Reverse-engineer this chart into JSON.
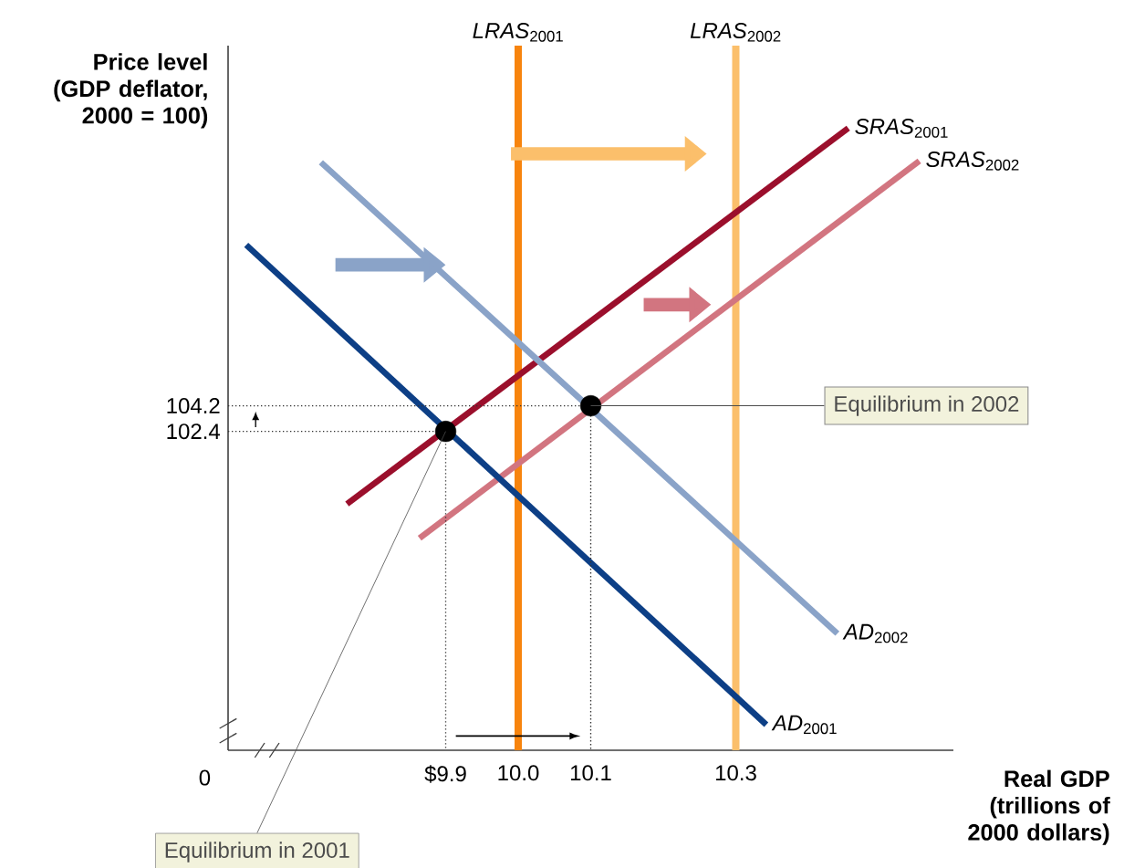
{
  "chart_data": {
    "type": "line",
    "ylabel": "Price level (GDP deflator, 2000 = 100)",
    "xlabel": "Real GDP (trillions of 2000 dollars)",
    "xlim": [
      9.6,
      10.6
    ],
    "ylim": [
      80,
      129.5
    ],
    "xticks": [
      {
        "value": 9.9,
        "label": "$9.9"
      },
      {
        "value": 10.0,
        "label": "10.0"
      },
      {
        "value": 10.1,
        "label": "10.1"
      },
      {
        "value": 10.3,
        "label": "10.3"
      }
    ],
    "yticks": [
      102.4,
      104.2
    ],
    "legend": false,
    "series": [
      {
        "name": "*LRAS*$_{2001}$",
        "color": "#f7840e",
        "x": [
          10.0,
          10.0
        ],
        "values": [
          80,
          129.5
        ]
      },
      {
        "name": "*LRAS*$_{2002}$",
        "color": "#fbbf6b",
        "x": [
          10.3,
          10.3
        ],
        "values": [
          80,
          129.5
        ]
      },
      {
        "name": "*SRAS*$_{2001}$",
        "color": "#9b0f2c",
        "x": [
          9.764,
          10.455
        ],
        "values": [
          97.3,
          123.7
        ]
      },
      {
        "name": "*SRAS*$_{2002}$",
        "color": "#d27580",
        "x": [
          9.864,
          10.553
        ],
        "values": [
          94.9,
          121.4
        ]
      },
      {
        "name": "*AD*$_{2002}$",
        "color": "#8aa3c8",
        "x": [
          9.728,
          10.44
        ],
        "values": [
          121.3,
          88.2
        ]
      },
      {
        "name": "*AD*$_{2001}$",
        "color": "#0d3f86",
        "x": [
          9.625,
          10.342
        ],
        "values": [
          115.5,
          81.8
        ]
      },
      {
        "line_style": "dotted",
        "color": "#333333",
        "x": [
          9.6,
          9.9,
          9.9
        ],
        "values": [
          102.4,
          102.4,
          80
        ]
      },
      {
        "line_style": "dotted",
        "color": "#333333",
        "x": [
          9.6,
          10.1,
          10.1
        ],
        "values": [
          104.2,
          104.2,
          80
        ]
      },
      {
        "type": "scatter",
        "color": "#000000",
        "x": [
          9.9,
          10.1
        ],
        "values": [
          102.4,
          104.2
        ]
      }
    ],
    "annotations": [
      {
        "text": "Equilibrium in 2002",
        "x": 10.1,
        "y": 104.2
      },
      {
        "text": "Equilibrium in 2001",
        "x": 9.9,
        "y": 102.4
      },
      "0"
    ]
  }
}
